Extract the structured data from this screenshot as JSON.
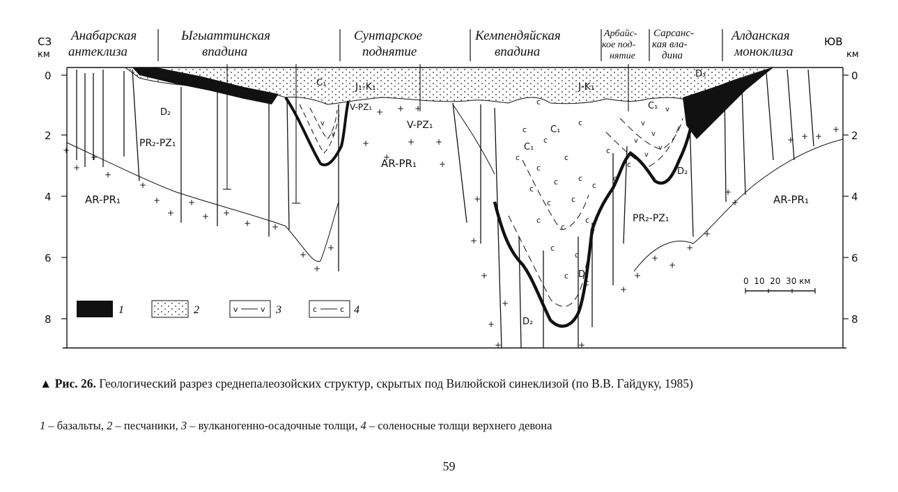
{
  "figure": {
    "corner_left": "СЗ",
    "corner_right": "ЮВ",
    "km_unit": "км",
    "depth_ticks": [
      "0",
      "2",
      "4",
      "6",
      "8"
    ],
    "regions": [
      {
        "line1": "Анабарская",
        "line2": "антеклиза"
      },
      {
        "line1": "Ыгыаттинская",
        "line2": "впадина"
      },
      {
        "line1": "Сунтарское",
        "line2": "поднятие"
      },
      {
        "line1": "Кемпендяйская",
        "line2": "впадина"
      },
      {
        "line1": "Арбайс-",
        "line2": "кое под-",
        "line3": "нятие"
      },
      {
        "line1": "Сарсанс-",
        "line2": "кая вла-",
        "line3": "дина"
      },
      {
        "line1": "Алданская",
        "line2": "моноклиза"
      }
    ],
    "unit_labels": {
      "ar_pr1_left": "AR-PR₁",
      "ar_pr1_center": "AR-PR₁",
      "ar_pr1_right": "AR-PR₁",
      "pr2_pz1_left": "PR₂-PZ₁",
      "pr2_pz1_right": "PR₂-PZ₁",
      "v_pz1_a": "V-PZ₁",
      "v_pz1_b": "V-PZ₁",
      "j_k1_left": "J₁-K₁",
      "j_k1_right": "J-K₁",
      "c1_a": "C₁",
      "c1_b": "C₁",
      "c1_c": "C₁",
      "c1_d": "C₁",
      "d2_a": "D₂",
      "d2_b": "D₂",
      "d2_c": "D₂",
      "d2_d": "D₂",
      "d3": "D₃"
    },
    "scale_bar": "0  10  20  30 км",
    "legend": [
      {
        "num": "1"
      },
      {
        "num": "2"
      },
      {
        "num": "3"
      },
      {
        "num": "4"
      }
    ]
  },
  "caption": {
    "prefix": "▲ Рис. 26.",
    "text": " Геологический разрез среднепалеозойских структур, скрытых под Вилюйской синеклизой (по В.В. Гайдуку, 1985)"
  },
  "legend_text": {
    "n1": "1",
    "t1": " – базальты, ",
    "n2": "2",
    "t2": " – песчаники, ",
    "n3": "3",
    "t3": " – вулканогенно-осадочные толщи, ",
    "n4": "4",
    "t4": " – соленосные толщи верхнего девона"
  },
  "page_number": "59"
}
